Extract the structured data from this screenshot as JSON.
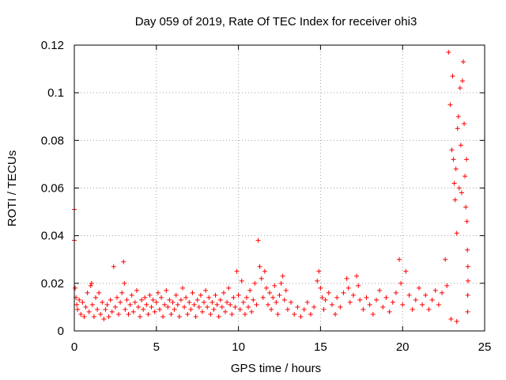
{
  "chart_data": {
    "type": "scatter",
    "title": "Day 059 of 2019, Rate Of TEC Index for receiver ohi3",
    "xlabel": "GPS time / hours",
    "ylabel": "ROTI / TECUs",
    "xlim": [
      0,
      25
    ],
    "ylim": [
      0,
      0.12
    ],
    "x_ticks": [
      0,
      5,
      10,
      15,
      20,
      25
    ],
    "y_ticks": [
      0,
      0.02,
      0.04,
      0.06,
      0.08,
      0.1,
      0.12
    ],
    "x_tick_labels": [
      "0",
      "5",
      "10",
      "15",
      "20",
      "25"
    ],
    "y_tick_labels": [
      "0",
      "0.02",
      "0.04",
      "0.06",
      "0.08",
      "0.1",
      "0.12"
    ],
    "grid": true,
    "marker": "+",
    "color": "#ff0000",
    "series": [
      {
        "name": "ROTI",
        "points": [
          [
            0.0,
            0.051
          ],
          [
            0.0,
            0.038
          ],
          [
            0.05,
            0.018
          ],
          [
            0.1,
            0.014
          ],
          [
            0.15,
            0.011
          ],
          [
            0.2,
            0.009
          ],
          [
            0.3,
            0.013
          ],
          [
            0.4,
            0.007
          ],
          [
            0.5,
            0.012
          ],
          [
            0.6,
            0.006
          ],
          [
            0.7,
            0.01
          ],
          [
            0.8,
            0.016
          ],
          [
            0.9,
            0.008
          ],
          [
            1.0,
            0.019
          ],
          [
            1.05,
            0.02
          ],
          [
            1.1,
            0.011
          ],
          [
            1.2,
            0.006
          ],
          [
            1.3,
            0.014
          ],
          [
            1.4,
            0.009
          ],
          [
            1.5,
            0.016
          ],
          [
            1.6,
            0.007
          ],
          [
            1.7,
            0.012
          ],
          [
            1.8,
            0.005
          ],
          [
            1.9,
            0.009
          ],
          [
            2.0,
            0.011
          ],
          [
            2.1,
            0.006
          ],
          [
            2.2,
            0.013
          ],
          [
            2.3,
            0.008
          ],
          [
            2.4,
            0.027
          ],
          [
            2.5,
            0.01
          ],
          [
            2.6,
            0.014
          ],
          [
            2.7,
            0.007
          ],
          [
            2.8,
            0.012
          ],
          [
            2.9,
            0.016
          ],
          [
            3.0,
            0.029
          ],
          [
            3.05,
            0.02
          ],
          [
            3.1,
            0.009
          ],
          [
            3.2,
            0.013
          ],
          [
            3.3,
            0.007
          ],
          [
            3.4,
            0.011
          ],
          [
            3.5,
            0.015
          ],
          [
            3.6,
            0.008
          ],
          [
            3.7,
            0.012
          ],
          [
            3.8,
            0.017
          ],
          [
            3.9,
            0.01
          ],
          [
            4.0,
            0.006
          ],
          [
            4.1,
            0.013
          ],
          [
            4.2,
            0.009
          ],
          [
            4.3,
            0.014
          ],
          [
            4.4,
            0.011
          ],
          [
            4.5,
            0.007
          ],
          [
            4.6,
            0.015
          ],
          [
            4.7,
            0.01
          ],
          [
            4.8,
            0.013
          ],
          [
            4.9,
            0.008
          ],
          [
            5.0,
            0.012
          ],
          [
            5.1,
            0.016
          ],
          [
            5.2,
            0.009
          ],
          [
            5.3,
            0.014
          ],
          [
            5.4,
            0.006
          ],
          [
            5.5,
            0.011
          ],
          [
            5.6,
            0.017
          ],
          [
            5.7,
            0.01
          ],
          [
            5.8,
            0.013
          ],
          [
            5.9,
            0.007
          ],
          [
            6.0,
            0.012
          ],
          [
            6.1,
            0.009
          ],
          [
            6.2,
            0.015
          ],
          [
            6.3,
            0.011
          ],
          [
            6.4,
            0.006
          ],
          [
            6.5,
            0.013
          ],
          [
            6.6,
            0.018
          ],
          [
            6.7,
            0.01
          ],
          [
            6.8,
            0.014
          ],
          [
            6.9,
            0.007
          ],
          [
            7.0,
            0.012
          ],
          [
            7.1,
            0.009
          ],
          [
            7.2,
            0.016
          ],
          [
            7.3,
            0.011
          ],
          [
            7.4,
            0.006
          ],
          [
            7.5,
            0.013
          ],
          [
            7.6,
            0.01
          ],
          [
            7.7,
            0.015
          ],
          [
            7.8,
            0.008
          ],
          [
            7.9,
            0.012
          ],
          [
            8.0,
            0.017
          ],
          [
            8.1,
            0.01
          ],
          [
            8.2,
            0.014
          ],
          [
            8.3,
            0.007
          ],
          [
            8.4,
            0.012
          ],
          [
            8.5,
            0.009
          ],
          [
            8.6,
            0.015
          ],
          [
            8.7,
            0.011
          ],
          [
            8.8,
            0.006
          ],
          [
            8.9,
            0.013
          ],
          [
            9.0,
            0.01
          ],
          [
            9.1,
            0.016
          ],
          [
            9.2,
            0.008
          ],
          [
            9.3,
            0.012
          ],
          [
            9.4,
            0.018
          ],
          [
            9.5,
            0.011
          ],
          [
            9.6,
            0.007
          ],
          [
            9.7,
            0.014
          ],
          [
            9.8,
            0.01
          ],
          [
            9.9,
            0.025
          ],
          [
            10.0,
            0.015
          ],
          [
            10.1,
            0.009
          ],
          [
            10.2,
            0.021
          ],
          [
            10.3,
            0.012
          ],
          [
            10.4,
            0.007
          ],
          [
            10.5,
            0.014
          ],
          [
            10.6,
            0.01
          ],
          [
            10.7,
            0.017
          ],
          [
            10.8,
            0.008
          ],
          [
            10.9,
            0.013
          ],
          [
            11.0,
            0.02
          ],
          [
            11.1,
            0.011
          ],
          [
            11.2,
            0.038
          ],
          [
            11.3,
            0.027
          ],
          [
            11.4,
            0.022
          ],
          [
            11.5,
            0.014
          ],
          [
            11.6,
            0.025
          ],
          [
            11.7,
            0.018
          ],
          [
            11.8,
            0.011
          ],
          [
            11.9,
            0.016
          ],
          [
            12.0,
            0.009
          ],
          [
            12.1,
            0.014
          ],
          [
            12.2,
            0.019
          ],
          [
            12.3,
            0.012
          ],
          [
            12.4,
            0.007
          ],
          [
            12.5,
            0.015
          ],
          [
            12.6,
            0.02
          ],
          [
            12.7,
            0.023
          ],
          [
            12.8,
            0.013
          ],
          [
            12.9,
            0.017
          ],
          [
            13.0,
            0.009
          ],
          [
            13.2,
            0.012
          ],
          [
            13.4,
            0.007
          ],
          [
            13.6,
            0.01
          ],
          [
            13.8,
            0.006
          ],
          [
            14.0,
            0.009
          ],
          [
            14.2,
            0.012
          ],
          [
            14.4,
            0.007
          ],
          [
            14.6,
            0.01
          ],
          [
            14.8,
            0.021
          ],
          [
            14.9,
            0.025
          ],
          [
            15.0,
            0.018
          ],
          [
            15.1,
            0.014
          ],
          [
            15.2,
            0.009
          ],
          [
            15.3,
            0.013
          ],
          [
            15.5,
            0.016
          ],
          [
            15.7,
            0.011
          ],
          [
            15.9,
            0.007
          ],
          [
            16.0,
            0.014
          ],
          [
            16.2,
            0.01
          ],
          [
            16.4,
            0.016
          ],
          [
            16.6,
            0.022
          ],
          [
            16.7,
            0.018
          ],
          [
            16.8,
            0.012
          ],
          [
            17.0,
            0.015
          ],
          [
            17.2,
            0.023
          ],
          [
            17.3,
            0.019
          ],
          [
            17.4,
            0.013
          ],
          [
            17.6,
            0.009
          ],
          [
            17.8,
            0.014
          ],
          [
            18.0,
            0.011
          ],
          [
            18.2,
            0.007
          ],
          [
            18.4,
            0.013
          ],
          [
            18.6,
            0.017
          ],
          [
            18.8,
            0.01
          ],
          [
            19.0,
            0.014
          ],
          [
            19.2,
            0.008
          ],
          [
            19.4,
            0.012
          ],
          [
            19.6,
            0.016
          ],
          [
            19.8,
            0.03
          ],
          [
            19.9,
            0.02
          ],
          [
            20.0,
            0.011
          ],
          [
            20.2,
            0.025
          ],
          [
            20.4,
            0.015
          ],
          [
            20.6,
            0.009
          ],
          [
            20.8,
            0.013
          ],
          [
            21.0,
            0.018
          ],
          [
            21.2,
            0.011
          ],
          [
            21.4,
            0.015
          ],
          [
            21.6,
            0.009
          ],
          [
            21.8,
            0.013
          ],
          [
            22.0,
            0.017
          ],
          [
            22.2,
            0.011
          ],
          [
            22.4,
            0.016
          ],
          [
            22.6,
            0.03
          ],
          [
            22.7,
            0.019
          ],
          [
            22.8,
            0.117
          ],
          [
            22.9,
            0.095
          ],
          [
            23.0,
            0.076
          ],
          [
            23.05,
            0.107
          ],
          [
            23.1,
            0.072
          ],
          [
            23.15,
            0.062
          ],
          [
            23.2,
            0.055
          ],
          [
            23.25,
            0.068
          ],
          [
            23.3,
            0.041
          ],
          [
            23.35,
            0.085
          ],
          [
            23.4,
            0.09
          ],
          [
            23.45,
            0.06
          ],
          [
            23.5,
            0.102
          ],
          [
            23.55,
            0.078
          ],
          [
            23.6,
            0.058
          ],
          [
            23.65,
            0.105
          ],
          [
            23.7,
            0.113
          ],
          [
            23.75,
            0.087
          ],
          [
            23.8,
            0.065
          ],
          [
            23.85,
            0.052
          ],
          [
            23.9,
            0.072
          ],
          [
            23.92,
            0.046
          ],
          [
            23.95,
            0.034
          ],
          [
            23.98,
            0.027
          ],
          [
            23.99,
            0.021
          ],
          [
            23.97,
            0.015
          ],
          [
            23.96,
            0.008
          ],
          [
            22.95,
            0.005
          ],
          [
            23.3,
            0.004
          ]
        ]
      }
    ]
  }
}
